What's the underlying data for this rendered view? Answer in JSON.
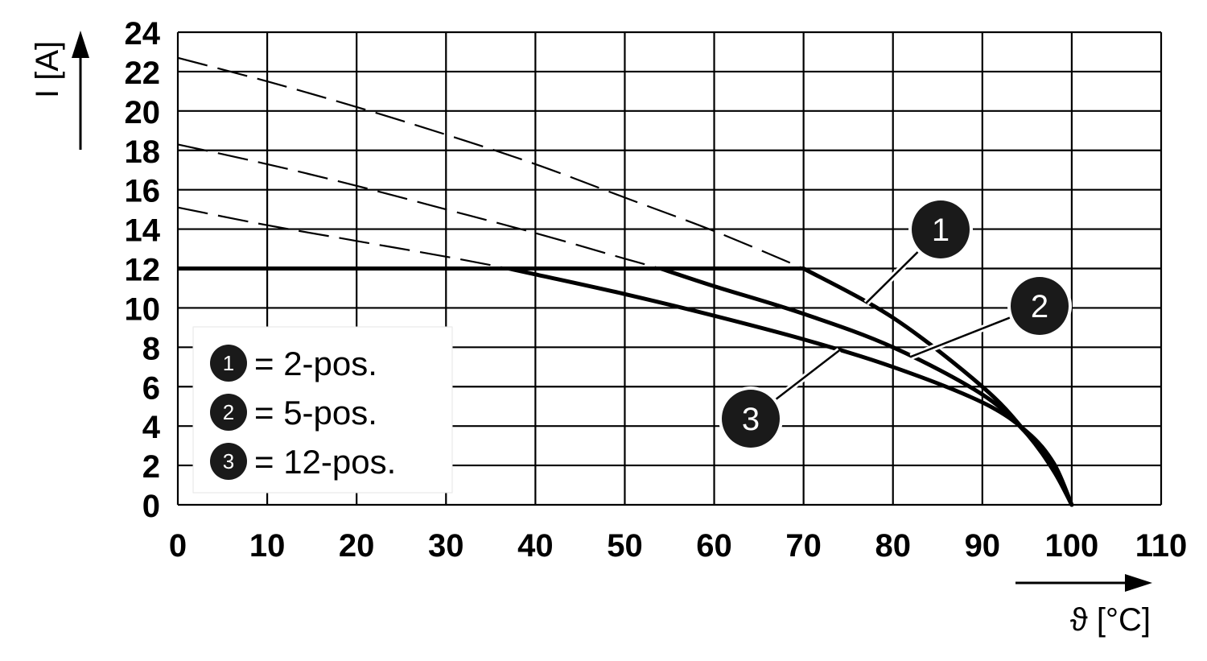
{
  "chart_data": {
    "type": "line",
    "xlabel": "ϑ [°C]",
    "ylabel": "I [A]",
    "xlim": [
      0,
      110
    ],
    "ylim": [
      0,
      24
    ],
    "x_ticks": [
      0,
      10,
      20,
      30,
      40,
      50,
      60,
      70,
      80,
      90,
      100,
      110
    ],
    "y_ticks": [
      0,
      2,
      4,
      6,
      8,
      10,
      12,
      14,
      16,
      18,
      20,
      22,
      24
    ],
    "grid": true,
    "current_limit": 12,
    "series": [
      {
        "marker": "1",
        "label": "= 2-pos.",
        "points": [
          [
            0,
            22.7
          ],
          [
            10,
            21.5
          ],
          [
            20,
            20.2
          ],
          [
            30,
            18.8
          ],
          [
            40,
            17.3
          ],
          [
            50,
            15.6
          ],
          [
            60,
            13.9
          ],
          [
            70,
            12.0
          ],
          [
            80,
            9.5
          ],
          [
            90,
            6.0
          ],
          [
            95,
            3.6
          ],
          [
            98,
            1.7
          ],
          [
            100,
            0
          ]
        ]
      },
      {
        "marker": "2",
        "label": "= 5-pos.",
        "points": [
          [
            0,
            18.3
          ],
          [
            10,
            17.3
          ],
          [
            20,
            16.2
          ],
          [
            30,
            15.0
          ],
          [
            40,
            13.8
          ],
          [
            50,
            12.5
          ],
          [
            54,
            12.0
          ],
          [
            60,
            11.1
          ],
          [
            70,
            9.7
          ],
          [
            80,
            8.0
          ],
          [
            90,
            5.6
          ],
          [
            95,
            3.6
          ],
          [
            98,
            1.8
          ],
          [
            100,
            0
          ]
        ]
      },
      {
        "marker": "3",
        "label": "= 12-pos.",
        "points": [
          [
            0,
            15.1
          ],
          [
            10,
            14.2
          ],
          [
            20,
            13.4
          ],
          [
            30,
            12.6
          ],
          [
            37,
            12.0
          ],
          [
            40,
            11.7
          ],
          [
            50,
            10.7
          ],
          [
            60,
            9.6
          ],
          [
            70,
            8.4
          ],
          [
            80,
            7.0
          ],
          [
            90,
            5.2
          ],
          [
            95,
            3.7
          ],
          [
            98,
            2.1
          ],
          [
            100,
            0
          ]
        ]
      }
    ]
  }
}
